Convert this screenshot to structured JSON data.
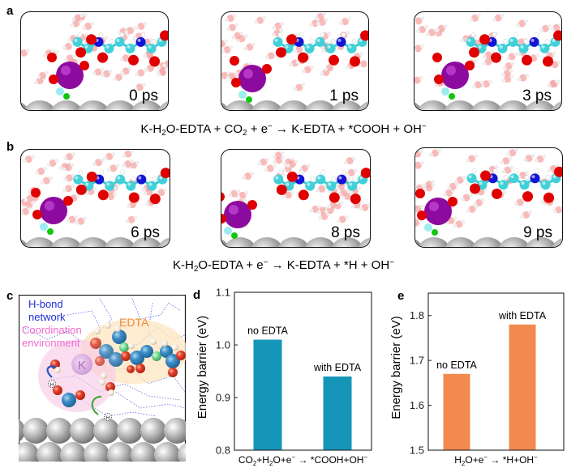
{
  "panels": {
    "a": {
      "letter": "a",
      "snapshots": [
        {
          "time": "0 ps"
        },
        {
          "time": "1 ps"
        },
        {
          "time": "3 ps"
        }
      ],
      "equation": {
        "p1": "K-H",
        "s1": "2",
        "p2": "O-EDTA + CO",
        "s2": "2",
        "p3": " + e",
        "sup1": "−",
        "p4": " → K-EDTA + *COOH + OH",
        "sup2": "−"
      }
    },
    "b": {
      "letter": "b",
      "snapshots": [
        {
          "time": "6 ps"
        },
        {
          "time": "8 ps"
        },
        {
          "time": "9 ps"
        }
      ],
      "equation": {
        "p1": "K-H",
        "s1": "2",
        "p2": "O-EDTA + e",
        "sup1": "−",
        "p3": " → K-EDTA + *H + OH",
        "sup2": "−"
      }
    },
    "c": {
      "letter": "c",
      "hbond_label_1": "H-bond",
      "hbond_label_2": "network",
      "coord_label_1": "Coordination",
      "coord_label_2": "environment",
      "edta_label": "EDTA",
      "k_label": "K",
      "h_label": "H",
      "colors": {
        "hbond": "#1f2fd6",
        "coordination": "#f06ad0",
        "edta": "#ef8a3a"
      }
    }
  },
  "chart_data": [
    {
      "type": "bar",
      "panel": "d",
      "letter": "d",
      "categories": [
        "no EDTA",
        "with EDTA"
      ],
      "values": [
        1.01,
        0.94
      ],
      "xlabel_parts": {
        "p1": "CO",
        "s1": "2",
        "p2": "+H",
        "s2": "2",
        "p3": "O+e",
        "sup1": "−",
        "p4": " → *COOH+OH",
        "sup2": "−"
      },
      "ylabel": "Energy barrier (eV)",
      "ylim": [
        0.8,
        1.1
      ],
      "yticks": [
        "0.8",
        "0.9",
        "1.0",
        "1.1"
      ],
      "ytick_values": [
        0.8,
        0.9,
        1.0,
        1.1
      ],
      "color": "#1596b8",
      "grid": false
    },
    {
      "type": "bar",
      "panel": "e",
      "letter": "e",
      "categories": [
        "no EDTA",
        "with EDTA"
      ],
      "values": [
        1.67,
        1.78
      ],
      "xlabel_parts": {
        "p1": "H",
        "s1": "2",
        "p2": "O+e",
        "sup1": "−",
        "p3": " → *H+OH",
        "sup2": "−"
      },
      "ylabel": "Energy barrier (eV)",
      "ylim": [
        1.5,
        1.85
      ],
      "yticks": [
        "1.5",
        "1.6",
        "1.7",
        "1.8"
      ],
      "ytick_values": [
        1.5,
        1.6,
        1.7,
        1.8
      ],
      "color": "#f28a4e",
      "grid": false
    }
  ]
}
